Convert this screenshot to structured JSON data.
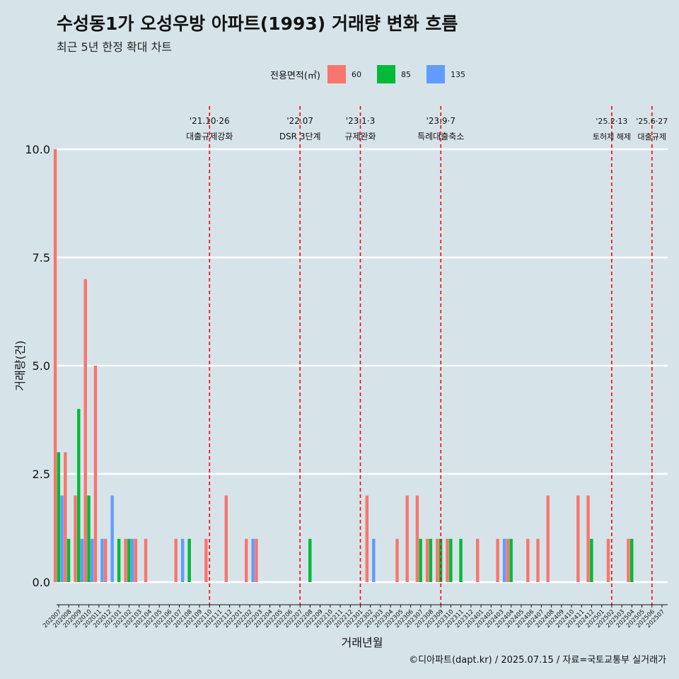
{
  "title": "수성동1가 오성우방 아파트(1993) 거래량 변화 흐름",
  "subtitle": "최근 5년 한정 확대 차트",
  "caption": "©디아파트(dapt.kr) / 2025.07.15 / 자료=국토교통부 실거래가",
  "legend": {
    "title": "전용면적(㎡)",
    "items": [
      {
        "label": "60",
        "color": "#f8766d"
      },
      {
        "label": "85",
        "color": "#00ba38"
      },
      {
        "label": "135",
        "color": "#619cff"
      }
    ]
  },
  "chart_data": {
    "type": "bar",
    "title": "수성동1가 오성우방 아파트(1993) 거래량 변화 흐름",
    "xlabel": "거래년월",
    "ylabel": "거래량(건)",
    "ylim": [
      -0.4,
      10.5
    ],
    "yticks": [
      "0.0",
      "2.5",
      "5.0",
      "7.5",
      "10.0"
    ],
    "categories": [
      "202007",
      "202008",
      "202009",
      "202010",
      "202011",
      "202012",
      "202101",
      "202102",
      "202103",
      "202104",
      "202105",
      "202106",
      "202107",
      "202108",
      "202109",
      "202110",
      "202111",
      "202112",
      "202201",
      "202202",
      "202203",
      "202204",
      "202205",
      "202206",
      "202207",
      "202208",
      "202209",
      "202210",
      "202211",
      "202212",
      "202301",
      "202302",
      "202303",
      "202304",
      "202305",
      "202306",
      "202307",
      "202308",
      "202309",
      "202310",
      "202311",
      "202312",
      "202401",
      "202402",
      "202403",
      "202404",
      "202405",
      "202406",
      "202407",
      "202408",
      "202409",
      "202410",
      "202411",
      "202412",
      "202501",
      "202502",
      "202503",
      "202504",
      "202505",
      "202506",
      "202507"
    ],
    "series": [
      {
        "name": "60",
        "color": "#f8766d",
        "values": [
          10,
          3,
          2,
          7,
          5,
          1,
          0,
          1,
          1,
          1,
          0,
          0,
          1,
          0,
          0,
          1,
          0,
          2,
          0,
          1,
          1,
          0,
          0,
          0,
          0,
          0,
          0,
          0,
          0,
          0,
          0,
          2,
          0,
          0,
          1,
          2,
          2,
          1,
          1,
          1,
          0,
          0,
          1,
          0,
          1,
          1,
          0,
          1,
          1,
          2,
          0,
          0,
          2,
          2,
          0,
          1,
          0,
          1,
          0,
          0,
          0
        ]
      },
      {
        "name": "85",
        "color": "#00ba38",
        "values": [
          3,
          1,
          4,
          2,
          0,
          0,
          1,
          1,
          0,
          0,
          0,
          0,
          0,
          1,
          0,
          0,
          0,
          0,
          0,
          0,
          0,
          0,
          0,
          0,
          0,
          1,
          0,
          0,
          0,
          0,
          0,
          0,
          0,
          0,
          0,
          0,
          1,
          1,
          1,
          1,
          1,
          0,
          0,
          0,
          0,
          1,
          0,
          0,
          0,
          0,
          0,
          0,
          0,
          1,
          0,
          0,
          0,
          1,
          0,
          0,
          0
        ]
      },
      {
        "name": "135",
        "color": "#619cff",
        "values": [
          2,
          0,
          1,
          1,
          1,
          2,
          0,
          1,
          0,
          0,
          0,
          0,
          1,
          0,
          0,
          0,
          0,
          0,
          0,
          1,
          0,
          0,
          0,
          0,
          0,
          0,
          0,
          0,
          0,
          0,
          0,
          1,
          0,
          0,
          0,
          0,
          0,
          0,
          0,
          0,
          0,
          0,
          0,
          0,
          1,
          0,
          0,
          0,
          0,
          0,
          0,
          0,
          0,
          0,
          0,
          0,
          0,
          0,
          0,
          0,
          0
        ]
      }
    ],
    "events": [
      {
        "date": "'21.10·26",
        "label": "대출규제강화",
        "month": "202110"
      },
      {
        "date": "'22.07",
        "label": "DSR 3단계",
        "month": "202207"
      },
      {
        "date": "'23.1·3",
        "label": "규제완화",
        "month": "202301"
      },
      {
        "date": "'23.9·7",
        "label": "특례대출축소",
        "month": "202309"
      },
      {
        "date": "'25.2·13",
        "label": "토허제 해제",
        "month": "202502"
      },
      {
        "date": "'25.6·27",
        "label": "대출규제",
        "month": "202506"
      }
    ]
  }
}
